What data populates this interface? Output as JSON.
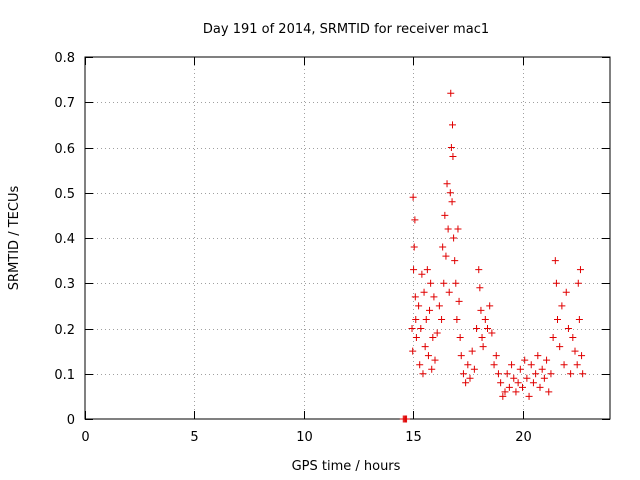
{
  "chart_data": {
    "type": "scatter",
    "title": "Day 191 of 2014, SRMTID for receiver mac1",
    "xlabel": "GPS time / hours",
    "ylabel": "SRMTID / TECUs",
    "xlim": [
      0,
      24
    ],
    "ylim": [
      0,
      0.8
    ],
    "xticks": [
      0,
      5,
      10,
      15,
      20
    ],
    "yticks": [
      0,
      0.1,
      0.2,
      0.3,
      0.4,
      0.5,
      0.6,
      0.7,
      0.8
    ],
    "xtick_labels": [
      "0",
      "5",
      "10",
      "15",
      "20"
    ],
    "ytick_labels": [
      "0",
      "0.1",
      "0.2",
      "0.3",
      "0.4",
      "0.5",
      "0.6",
      "0.7",
      "0.8"
    ],
    "grid": true,
    "marker": "+",
    "series_color": "#e00000",
    "series": [
      {
        "name": "SRMTID",
        "x": [
          14.55,
          14.6,
          14.65,
          14.7,
          14.95,
          15.0,
          15.05,
          15.1,
          14.98,
          15.02,
          15.08,
          15.12,
          15.15,
          15.25,
          15.3,
          15.35,
          15.4,
          15.45,
          15.5,
          15.55,
          15.6,
          15.65,
          15.7,
          15.75,
          15.8,
          15.85,
          15.9,
          15.95,
          16.0,
          16.1,
          16.2,
          16.3,
          16.35,
          16.4,
          16.45,
          16.5,
          16.55,
          16.6,
          16.65,
          16.7,
          16.72,
          16.75,
          16.78,
          16.8,
          16.82,
          16.85,
          16.9,
          16.95,
          17.0,
          17.05,
          17.1,
          17.15,
          17.2,
          17.3,
          17.4,
          17.5,
          17.6,
          17.7,
          17.8,
          17.9,
          18.0,
          18.05,
          18.1,
          18.15,
          18.2,
          18.3,
          18.4,
          18.5,
          18.6,
          18.7,
          18.8,
          18.9,
          19.0,
          19.1,
          19.2,
          19.3,
          19.4,
          19.5,
          19.6,
          19.7,
          19.8,
          19.9,
          20.0,
          20.1,
          20.2,
          20.3,
          20.4,
          20.5,
          20.6,
          20.7,
          20.8,
          20.9,
          21.0,
          21.1,
          21.2,
          21.3,
          21.4,
          21.5,
          21.55,
          21.6,
          21.7,
          21.8,
          21.9,
          22.0,
          22.1,
          22.2,
          22.3,
          22.4,
          22.5,
          22.55,
          22.6,
          22.65,
          22.7,
          22.75
        ],
        "y": [
          0.0,
          0.0,
          0.0,
          0.0,
          0.2,
          0.49,
          0.38,
          0.27,
          0.15,
          0.33,
          0.44,
          0.22,
          0.18,
          0.25,
          0.12,
          0.2,
          0.32,
          0.1,
          0.28,
          0.16,
          0.22,
          0.33,
          0.14,
          0.24,
          0.3,
          0.11,
          0.18,
          0.27,
          0.13,
          0.19,
          0.25,
          0.22,
          0.38,
          0.3,
          0.45,
          0.36,
          0.52,
          0.42,
          0.28,
          0.5,
          0.72,
          0.6,
          0.48,
          0.65,
          0.58,
          0.4,
          0.35,
          0.3,
          0.22,
          0.42,
          0.26,
          0.18,
          0.14,
          0.1,
          0.08,
          0.12,
          0.09,
          0.15,
          0.11,
          0.2,
          0.33,
          0.29,
          0.24,
          0.18,
          0.16,
          0.22,
          0.2,
          0.25,
          0.19,
          0.12,
          0.14,
          0.1,
          0.08,
          0.05,
          0.06,
          0.1,
          0.07,
          0.12,
          0.09,
          0.06,
          0.08,
          0.11,
          0.07,
          0.13,
          0.09,
          0.05,
          0.12,
          0.08,
          0.1,
          0.14,
          0.07,
          0.11,
          0.09,
          0.13,
          0.06,
          0.1,
          0.18,
          0.35,
          0.3,
          0.22,
          0.16,
          0.25,
          0.12,
          0.28,
          0.2,
          0.1,
          0.18,
          0.15,
          0.12,
          0.3,
          0.22,
          0.33,
          0.14,
          0.1
        ]
      }
    ]
  }
}
